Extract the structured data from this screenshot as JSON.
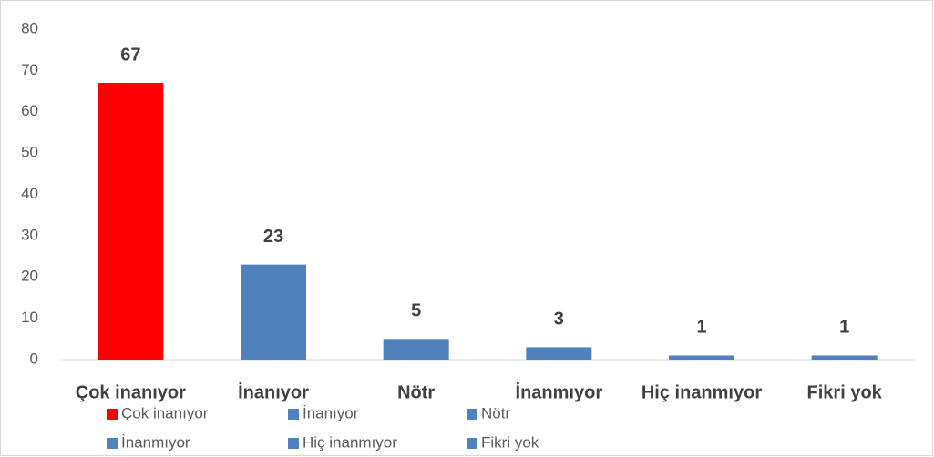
{
  "chart_data": {
    "type": "bar",
    "categories": [
      "Çok inanıyor",
      "İnanıyor",
      "Nötr",
      "İnanmıyor",
      "Hiç inanmıyor",
      "Fikri yok"
    ],
    "values": [
      67,
      23,
      5,
      3,
      1,
      1
    ],
    "colors": [
      "#ff0000",
      "#4f81bd",
      "#4f81bd",
      "#4f81bd",
      "#4f81bd",
      "#4f81bd"
    ],
    "ylim": [
      0,
      80
    ],
    "yticks": [
      0,
      10,
      20,
      30,
      40,
      50,
      60,
      70,
      80
    ],
    "grid": false,
    "legend": "bottom"
  }
}
